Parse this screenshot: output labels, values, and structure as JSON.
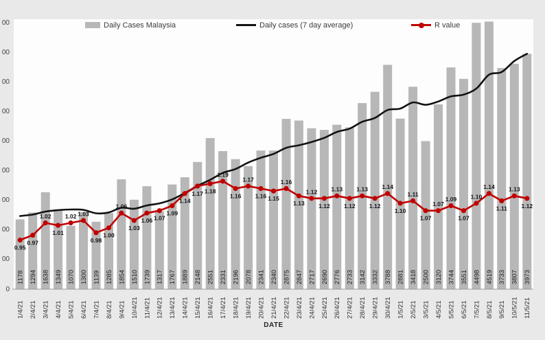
{
  "chart_data": {
    "type": "combo",
    "title": "",
    "x_axis_title": "DATE",
    "legend": {
      "position": "top-inside"
    },
    "categories": [
      "1/4/21",
      "2/4/21",
      "3/4/21",
      "4/4/21",
      "5/4/21",
      "6/4/21",
      "7/4/21",
      "8/4/21",
      "9/4/21",
      "10/4/21",
      "11/4/21",
      "12/4/21",
      "13/4/21",
      "14/4/21",
      "15/4/21",
      "16/4/21",
      "17/4/21",
      "18/4/21",
      "19/4/21",
      "20/4/21",
      "21/4/21",
      "22/4/21",
      "23/4/21",
      "24/4/21",
      "25/4/21",
      "26/4/21",
      "27/4/21",
      "28/4/21",
      "29/4/21",
      "30/4/21",
      "1/5/21",
      "2/5/21",
      "3/5/21",
      "4/5/21",
      "5/5/21",
      "6/5/21",
      "7/5/21",
      "8/5/21",
      "9/5/21",
      "10/5/21",
      "11/5/21"
    ],
    "series": [
      {
        "name": "Daily Cases Malaysia",
        "chart_type": "bar",
        "color": "#b7b7b7",
        "axis": "primary",
        "values": [
          1178,
          1294,
          1638,
          1349,
          1070,
          1300,
          1139,
          1285,
          1854,
          1510,
          1739,
          1317,
          1767,
          1889,
          2148,
          2551,
          2331,
          2196,
          2078,
          2341,
          2340,
          2875,
          2847,
          2717,
          2690,
          2776,
          2733,
          3142,
          3332,
          3788,
          2881,
          3418,
          2500,
          3120,
          3744,
          3551,
          4498,
          4519,
          3733,
          3807,
          3973
        ],
        "data_labels_position": "inside-base-rotated-90"
      },
      {
        "name": "Daily cases (7 day average)",
        "chart_type": "line-smooth",
        "color": "#121212",
        "axis": "primary",
        "values": [
          1235,
          1260,
          1310,
          1335,
          1345,
          1340,
          1281,
          1296,
          1376,
          1358,
          1414,
          1449,
          1516,
          1623,
          1746,
          1846,
          1963,
          2028,
          2137,
          2219,
          2284,
          2387,
          2430,
          2485,
          2555,
          2655,
          2711,
          2826,
          2891,
          3025,
          3049,
          3153,
          3113,
          3169,
          3255,
          3286,
          3387,
          3621,
          3666,
          3853,
          3975
        ]
      },
      {
        "name": "R value",
        "chart_type": "line-markers",
        "color": "#c00000",
        "axis": "secondary",
        "values": [
          0.95,
          0.97,
          1.02,
          1.01,
          1.02,
          1.03,
          0.98,
          1.0,
          1.06,
          1.03,
          1.06,
          1.07,
          1.09,
          1.14,
          1.17,
          1.18,
          1.19,
          1.16,
          1.17,
          1.16,
          1.15,
          1.16,
          1.13,
          1.12,
          1.12,
          1.13,
          1.12,
          1.13,
          1.12,
          1.14,
          1.1,
          1.11,
          1.07,
          1.07,
          1.09,
          1.07,
          1.1,
          1.14,
          1.11,
          1.13,
          1.12
        ],
        "data_labels": [
          "0.95",
          "0.97",
          "1.02",
          "1.01",
          "1.02",
          "1.03",
          "0.98",
          "1.00",
          "1.06",
          "1.03",
          "1.06",
          "1.07",
          "1.09",
          "1.14",
          "1.17",
          "1.18",
          "1.19",
          "1.16",
          "1.17",
          "1.16",
          "1.15",
          "1.16",
          "1.13",
          "1.12",
          "1.12",
          "1.13",
          "1.12",
          "1.13",
          "1.12",
          "1.14",
          "1.10",
          "1.11",
          "1.07",
          "1.07",
          "1.09",
          "1.07",
          "1.10",
          "1.14",
          "1.11",
          "1.13",
          "1.12"
        ],
        "label_side": [
          "below",
          "below",
          "above",
          "below",
          "above",
          "above",
          "below",
          "below",
          "above",
          "below",
          "below",
          "below",
          "below",
          "below",
          "below",
          "below",
          "above",
          "below",
          "above",
          "below",
          "below",
          "above",
          "below",
          "above",
          "below",
          "above",
          "below",
          "above",
          "below",
          "above",
          "below",
          "above",
          "below",
          "above",
          "above",
          "below",
          "above",
          "above",
          "below",
          "above",
          "below"
        ]
      }
    ],
    "y_axis": {
      "min": 0,
      "max": 4500,
      "step": 500,
      "labels_cropped_by_screenshot_edge": true,
      "tick_labels_visible": [
        "00",
        "00",
        "00",
        "00",
        "00",
        "00",
        "00",
        "00",
        "00",
        "0"
      ]
    },
    "secondary_axis": {
      "min": 0.75,
      "max": 1.85,
      "labels_visible": false
    },
    "x_tick_rotation": 90,
    "gridlines": "off"
  }
}
